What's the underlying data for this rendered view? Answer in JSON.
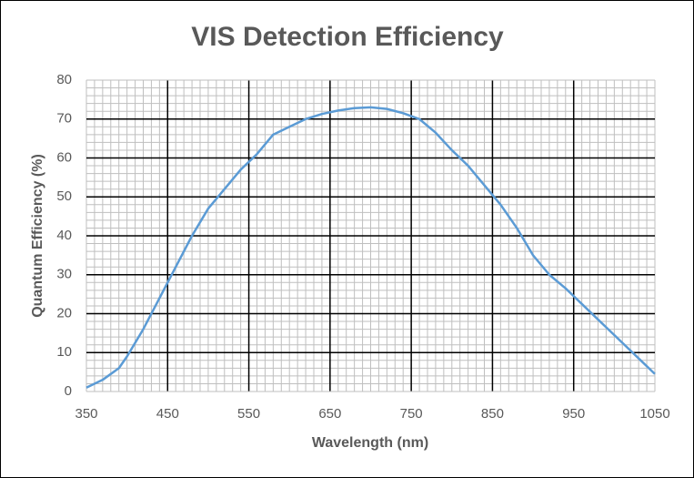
{
  "chart_data": {
    "type": "line",
    "title": "VIS Detection Efficiency",
    "x_label": "Wavelength (nm)",
    "y_label": "Quantum Efficiency (%)",
    "x": [
      350,
      370,
      390,
      400,
      420,
      440,
      460,
      480,
      500,
      520,
      540,
      560,
      580,
      600,
      620,
      640,
      660,
      680,
      700,
      720,
      740,
      760,
      780,
      800,
      820,
      840,
      860,
      880,
      900,
      920,
      940,
      960,
      980,
      1000,
      1020,
      1040,
      1050
    ],
    "series": [
      {
        "name": "VIS",
        "color": "#5b9bd5",
        "values": [
          1,
          3,
          6,
          9,
          16,
          24,
          32,
          40,
          47,
          52,
          57,
          61,
          66,
          68,
          70,
          71.3,
          72.2,
          72.8,
          73,
          72.6,
          71.5,
          70,
          66.5,
          62,
          58,
          53,
          48,
          42,
          35,
          30,
          26.5,
          22.5,
          18.5,
          14.5,
          10.5,
          6.5,
          4.5
        ]
      }
    ],
    "xlim": [
      350,
      1050
    ],
    "xticks": [
      350,
      450,
      550,
      650,
      750,
      850,
      950,
      1050
    ],
    "ylim": [
      0,
      80
    ],
    "yticks": [
      0,
      10,
      20,
      30,
      40,
      50,
      60,
      70,
      80
    ],
    "grid": true,
    "x_minor_step": 10,
    "y_minor_step": 2
  }
}
